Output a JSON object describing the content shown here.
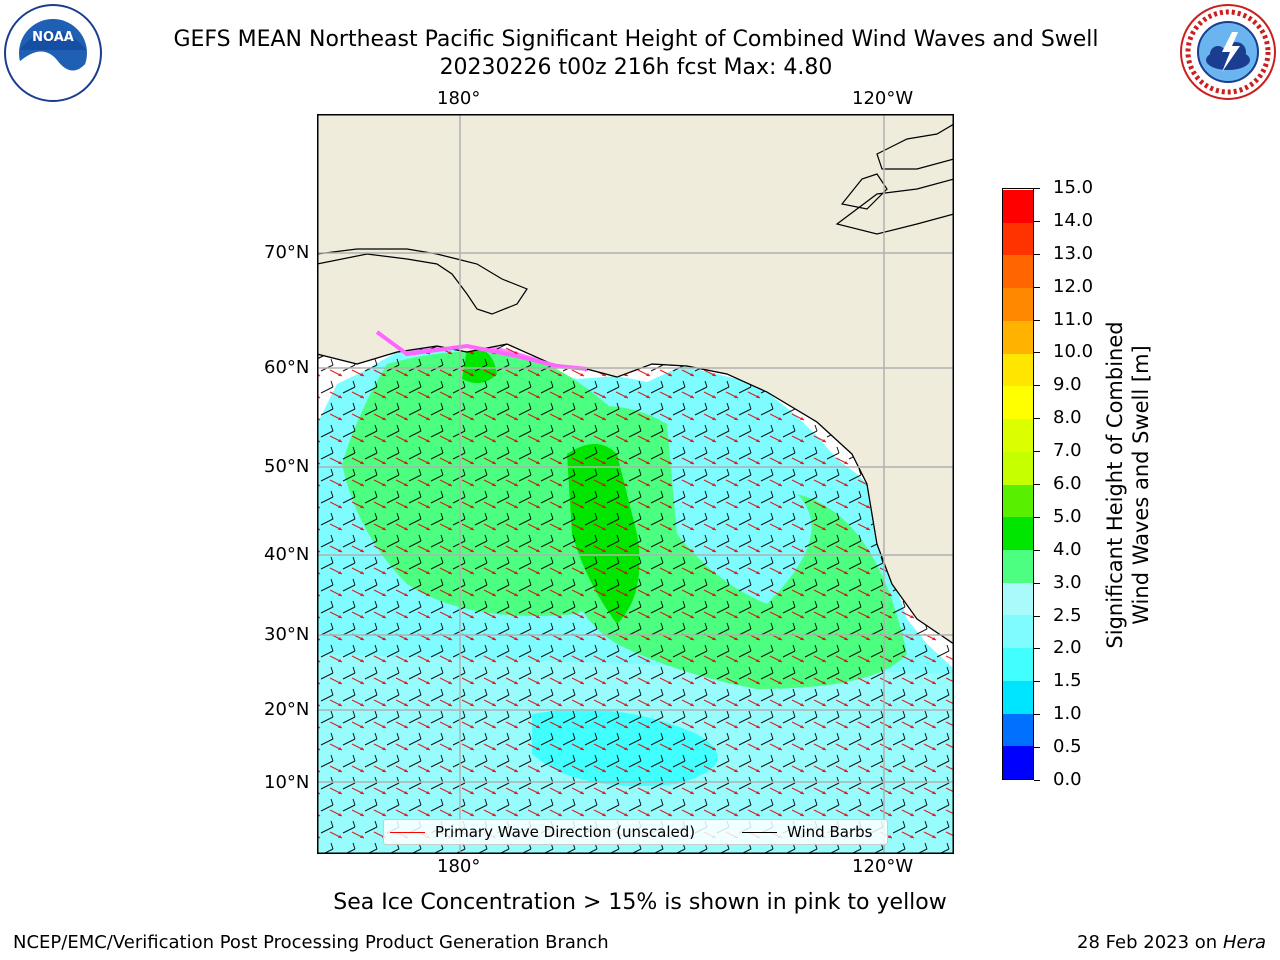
{
  "header": {
    "title_line1": "GEFS MEAN Northeast Pacific Significant Height of Combined Wind Waves and Swell",
    "title_line2": "20230226 t00z 216h fcst   Max: 4.80"
  },
  "logos": {
    "left": {
      "icon": "noaa-logo",
      "text": "NOAA",
      "ring_text": "NATIONAL OCEANIC AND ATMOSPHERIC ADMINISTRATION · U.S. DEPARTMENT OF COMMERCE"
    },
    "right": {
      "icon": "nws-logo",
      "ring_text": "NATIONAL WEATHER SERVICE"
    }
  },
  "map": {
    "lon_ticks_top": [
      "180°",
      "120°W"
    ],
    "lon_ticks_bottom": [
      "180°",
      "120°W"
    ],
    "lat_ticks": [
      "70°N",
      "60°N",
      "50°N",
      "40°N",
      "30°N",
      "20°N",
      "10°N"
    ],
    "legend": {
      "wave_label": "Primary Wave Direction (unscaled)",
      "wind_label": "Wind Barbs",
      "wave_color": "#ff0000",
      "wind_color": "#000000"
    },
    "colors": {
      "land": "#efecdc",
      "coast": "#000000",
      "grid": "#b0b0b0"
    }
  },
  "colorbar": {
    "title_line1": "Significant Height of Combined",
    "title_line2": "Wind Waves and Swell [m]",
    "tick_labels": [
      "0.0",
      "0.5",
      "1.0",
      "1.5",
      "2.0",
      "2.5",
      "3.0",
      "4.0",
      "5.0",
      "6.0",
      "7.0",
      "8.0",
      "9.0",
      "10.0",
      "11.0",
      "12.0",
      "13.0",
      "14.0",
      "15.0"
    ],
    "colors": [
      "#0000ff",
      "#0070ff",
      "#00e5ff",
      "#41ffff",
      "#7ffcff",
      "#a9fbfb",
      "#4dff80",
      "#00e600",
      "#58f000",
      "#c5ff00",
      "#dcff00",
      "#ffff00",
      "#ffe600",
      "#ffb300",
      "#ff8800",
      "#ff6600",
      "#ff3300",
      "#ff0000"
    ]
  },
  "note": "Sea Ice Concentration > 15% is shown in pink to yellow",
  "footer": {
    "left": "NCEP/EMC/Verification Post Processing Product Generation Branch",
    "right_date": "28 Feb 2023 on",
    "right_host": "Hera"
  }
}
